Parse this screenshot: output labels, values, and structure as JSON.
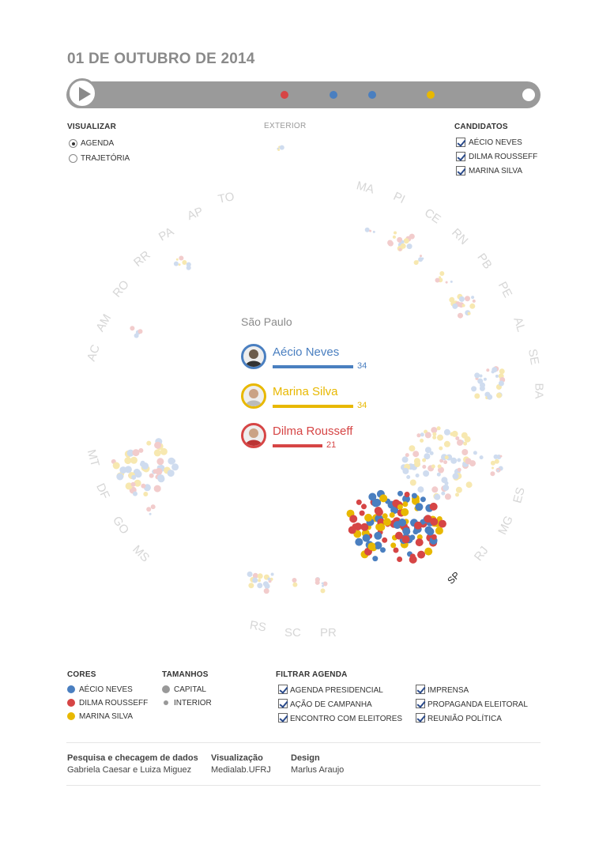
{
  "date_title": "01 DE OUTUBRO DE 2014",
  "timeline": {
    "dots": [
      "#d64545",
      "#4a7fc0",
      "#4a7fc0",
      "#e8b800"
    ]
  },
  "visualizar": {
    "heading": "VISUALIZAR",
    "options": [
      {
        "label": "AGENDA",
        "selected": true
      },
      {
        "label": "TRAJETÓRIA",
        "selected": false
      }
    ]
  },
  "exterior_label": "EXTERIOR",
  "candidatos": {
    "heading": "CANDIDATOS",
    "items": [
      {
        "label": "AÉCIO NEVES",
        "checked": true
      },
      {
        "label": "DILMA ROUSSEFF",
        "checked": true
      },
      {
        "label": "MARINA SILVA",
        "checked": true
      }
    ]
  },
  "states": [
    "AC",
    "AM",
    "RO",
    "RR",
    "PA",
    "AP",
    "TO",
    "MA",
    "PI",
    "CE",
    "RN",
    "PB",
    "PE",
    "AL",
    "SE",
    "BA",
    "ES",
    "MG",
    "RJ",
    "SP",
    "PR",
    "SC",
    "RS",
    "MS",
    "GO",
    "DF",
    "MT"
  ],
  "focus": {
    "state_name": "São Paulo",
    "candidates": [
      {
        "name": "Aécio Neves",
        "count": "34",
        "color": "#4a7fc0"
      },
      {
        "name": "Marina Silva",
        "count": "34",
        "color": "#e8b800"
      },
      {
        "name": "Dilma Rousseff",
        "count": "21",
        "color": "#d64545"
      }
    ]
  },
  "cores": {
    "heading": "CORES",
    "items": [
      {
        "label": "AÉCIO NEVES",
        "color": "#4a7fc0"
      },
      {
        "label": "DILMA ROUSSEFF",
        "color": "#d64545"
      },
      {
        "label": "MARINA SILVA",
        "color": "#e8b800"
      }
    ]
  },
  "tamanhos": {
    "heading": "TAMANHOS",
    "items": [
      {
        "label": "CAPITAL"
      },
      {
        "label": "INTERIOR"
      }
    ]
  },
  "filtrar": {
    "heading": "FILTRAR AGENDA",
    "items": [
      "AGENDA PRESIDENCIAL",
      "AÇÃO DE CAMPANHA",
      "ENCONTRO COM ELEITORES",
      "IMPRENSA",
      "PROPAGANDA ELEITORAL",
      "REUNIÃO POLÍTICA"
    ]
  },
  "credits": [
    {
      "heading": "Pesquisa e checagem de dados",
      "value": "Gabriela Caesar e Luiza Miguez"
    },
    {
      "heading": "Visualização",
      "value": "Medialab.UFRJ"
    },
    {
      "heading": "Design",
      "value": "Marlus Araujo"
    }
  ]
}
